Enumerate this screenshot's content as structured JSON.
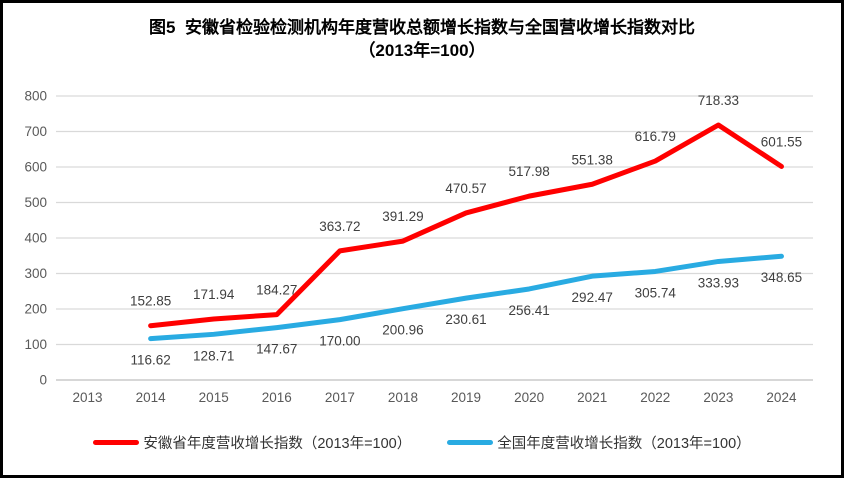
{
  "title": {
    "line1": "图5  安徽省检验检测机构年度营收总额增长指数与全国营收增长指数对比",
    "line2": "（2013年=100）"
  },
  "chart_data": {
    "type": "line",
    "title": "图5 安徽省检验检测机构年度营收总额增长指数与全国营收增长指数对比（2013年=100）",
    "categories": [
      "2013",
      "2014",
      "2015",
      "2016",
      "2017",
      "2018",
      "2019",
      "2020",
      "2021",
      "2022",
      "2023",
      "2024"
    ],
    "series": [
      {
        "name": "安徽省年度营收增长指数（2013年=100）",
        "id": "anhui",
        "color": "#FF0000",
        "values": [
          null,
          152.85,
          171.94,
          184.27,
          363.72,
          391.29,
          470.57,
          517.98,
          551.38,
          616.79,
          718.33,
          601.55
        ],
        "point_labels": [
          "",
          "152.85",
          "171.94",
          "184.27",
          "363.72",
          "391.29",
          "470.57",
          "517.98",
          "551.38",
          "616.79",
          "718.33",
          "601.55"
        ],
        "label_position": "above"
      },
      {
        "name": "全国年度营收增长指数（2013年=100）",
        "id": "national",
        "color": "#29ABE2",
        "values": [
          null,
          116.62,
          128.71,
          147.67,
          170,
          200.96,
          230.61,
          256.41,
          292.47,
          305.74,
          333.93,
          348.65
        ],
        "point_labels": [
          "",
          "116.62",
          "128.71",
          "147.67",
          "170.00",
          "200.96",
          "230.61",
          "256.41",
          "292.47",
          "305.74",
          "333.93",
          "348.65"
        ],
        "label_position": "below"
      }
    ],
    "ylim": [
      0,
      800
    ],
    "ytick_step": 100,
    "ytick_labels": [
      "0",
      "100",
      "200",
      "300",
      "400",
      "500",
      "600",
      "700",
      "800"
    ],
    "grid": true,
    "legend_position": "bottom"
  },
  "colors": {
    "gridline": "#D9D9D9",
    "baseline": "#BFBFBF",
    "axis_text": "#595959",
    "data_label_text": "#3F3F3F",
    "frame_border": "#000000",
    "background": "#FFFFFF"
  }
}
